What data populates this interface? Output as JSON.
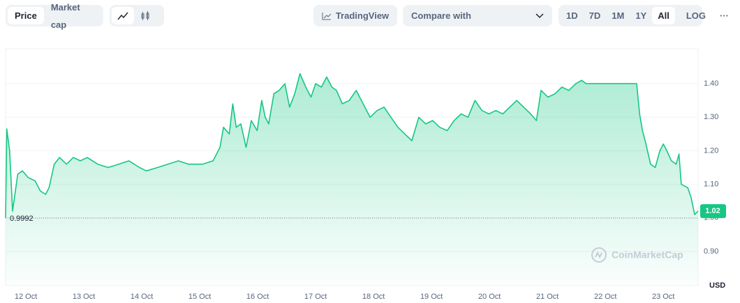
{
  "toolbar": {
    "view_tabs": [
      "Price",
      "Market cap"
    ],
    "trading_view": "TradingView",
    "compare": "Compare with",
    "ranges": [
      "1D",
      "7D",
      "1M",
      "1Y",
      "All"
    ],
    "log": "LOG",
    "more": "···"
  },
  "chart_data": {
    "type": "area",
    "color": "#16c784",
    "x": [
      -0.35,
      -0.33,
      -0.28,
      -0.23,
      -0.14,
      -0.06,
      0.04,
      0.16,
      0.25,
      0.34,
      0.4,
      0.49,
      0.58,
      0.7,
      0.82,
      0.94,
      1.06,
      1.24,
      1.42,
      1.6,
      1.78,
      1.96,
      2.08,
      2.27,
      2.45,
      2.63,
      2.81,
      3.05,
      3.23,
      3.35,
      3.41,
      3.51,
      3.57,
      3.63,
      3.71,
      3.8,
      3.89,
      3.99,
      4.07,
      4.13,
      4.19,
      4.28,
      4.37,
      4.47,
      4.55,
      4.64,
      4.73,
      4.83,
      4.92,
      5.0,
      5.1,
      5.19,
      5.28,
      5.36,
      5.46,
      5.58,
      5.7,
      5.82,
      5.94,
      6.06,
      6.18,
      6.3,
      6.42,
      6.54,
      6.66,
      6.78,
      6.9,
      7.02,
      7.14,
      7.27,
      7.39,
      7.51,
      7.63,
      7.75,
      7.87,
      7.99,
      8.11,
      8.23,
      8.35,
      8.47,
      8.59,
      8.71,
      8.81,
      8.89,
      9.01,
      9.13,
      9.25,
      9.37,
      9.49,
      9.59,
      9.67,
      10.04,
      10.54,
      10.59,
      10.64,
      10.7,
      10.78,
      10.86,
      10.94,
      11.0,
      11.06,
      11.14,
      11.22,
      11.27,
      11.31,
      11.42,
      11.48,
      11.54,
      11.6
    ],
    "values": [
      1.0,
      1.265,
      1.2,
      1.02,
      1.13,
      1.14,
      1.12,
      1.11,
      1.08,
      1.07,
      1.09,
      1.16,
      1.18,
      1.16,
      1.18,
      1.17,
      1.18,
      1.16,
      1.15,
      1.16,
      1.17,
      1.15,
      1.14,
      1.15,
      1.16,
      1.17,
      1.16,
      1.16,
      1.17,
      1.21,
      1.27,
      1.25,
      1.34,
      1.27,
      1.28,
      1.21,
      1.29,
      1.26,
      1.35,
      1.3,
      1.28,
      1.37,
      1.38,
      1.4,
      1.33,
      1.37,
      1.43,
      1.39,
      1.36,
      1.4,
      1.39,
      1.42,
      1.39,
      1.38,
      1.34,
      1.35,
      1.38,
      1.34,
      1.3,
      1.32,
      1.33,
      1.3,
      1.27,
      1.25,
      1.23,
      1.3,
      1.28,
      1.29,
      1.27,
      1.26,
      1.29,
      1.31,
      1.3,
      1.35,
      1.32,
      1.31,
      1.32,
      1.31,
      1.33,
      1.35,
      1.33,
      1.31,
      1.29,
      1.38,
      1.36,
      1.37,
      1.39,
      1.38,
      1.4,
      1.41,
      1.4,
      1.4,
      1.4,
      1.31,
      1.26,
      1.22,
      1.16,
      1.15,
      1.2,
      1.22,
      1.2,
      1.17,
      1.16,
      1.19,
      1.1,
      1.09,
      1.06,
      1.01,
      1.02
    ],
    "xlim": [
      -0.35,
      11.6
    ],
    "xticks": [
      {
        "value": 0,
        "label": "12 Oct"
      },
      {
        "value": 1,
        "label": "13 Oct"
      },
      {
        "value": 2,
        "label": "14 Oct"
      },
      {
        "value": 3,
        "label": "15 Oct"
      },
      {
        "value": 4,
        "label": "16 Oct"
      },
      {
        "value": 5,
        "label": "17 Oct"
      },
      {
        "value": 6,
        "label": "18 Oct"
      },
      {
        "value": 7,
        "label": "19 Oct"
      },
      {
        "value": 8,
        "label": "20 Oct"
      },
      {
        "value": 9,
        "label": "21 Oct"
      },
      {
        "value": 10,
        "label": "22 Oct"
      },
      {
        "value": 11,
        "label": "23 Oct"
      }
    ],
    "ylim": [
      0.8,
      1.5
    ],
    "yticks": [
      {
        "value": 0.9,
        "label": "0.90"
      },
      {
        "value": 1.0,
        "label": "1.00"
      },
      {
        "value": 1.1,
        "label": "1.10"
      },
      {
        "value": 1.2,
        "label": "1.20"
      },
      {
        "value": 1.3,
        "label": "1.30"
      },
      {
        "value": 1.4,
        "label": "1.40"
      }
    ],
    "grid": true,
    "reference_line": {
      "value": 0.9992,
      "label": "0.9992"
    },
    "last_price": 1.02,
    "y_unit": "USD",
    "watermark": "CoinMarketCap"
  }
}
